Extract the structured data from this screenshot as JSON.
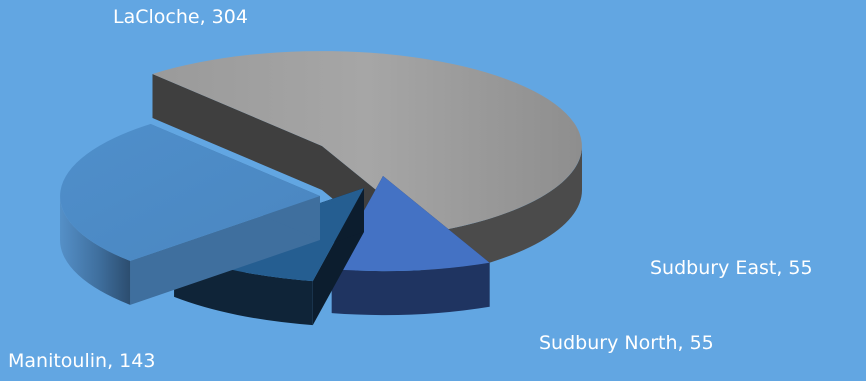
{
  "chart_data": {
    "type": "pie",
    "title": "",
    "style": "3d-exploded",
    "categories": [
      "LaCloche",
      "Sudbury East",
      "Sudbury North",
      "Manitoulin"
    ],
    "values": [
      304,
      55,
      55,
      143
    ],
    "labels": [
      "LaCloche, 304",
      "Sudbury East, 55",
      "Sudbury North, 55",
      "Manitoulin, 143"
    ],
    "colors": {
      "background": "#62a6e2",
      "LaCloche": "#a4a4a4",
      "Sudbury East": "#4472c4",
      "Sudbury North": "#255e91",
      "Manitoulin": "#5b9bd5"
    },
    "legend": "none"
  }
}
